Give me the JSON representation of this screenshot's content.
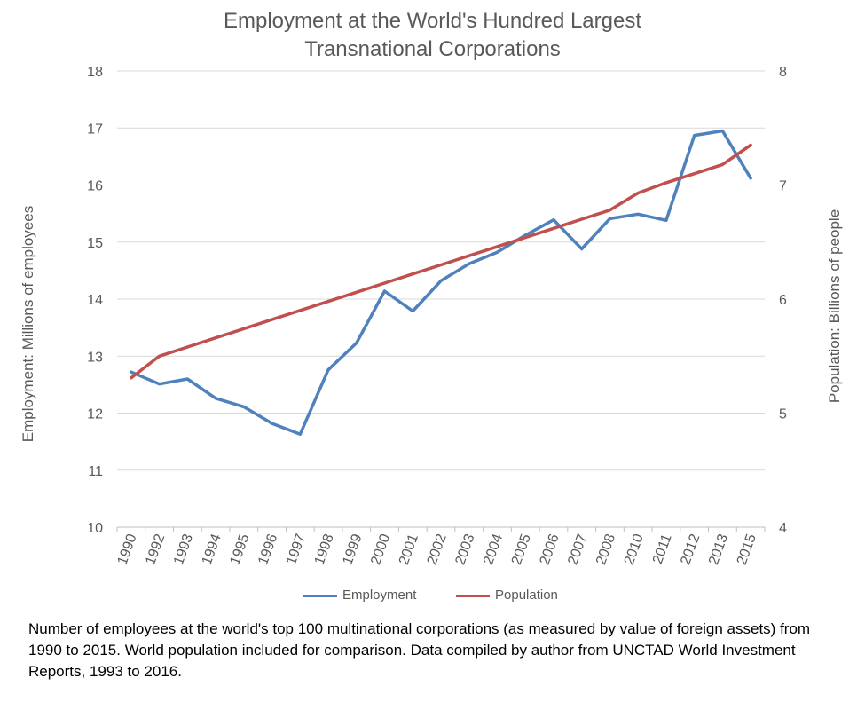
{
  "chart_data": {
    "type": "line",
    "title_lines": [
      "Employment at the World's Hundred Largest",
      "Transnational Corporations"
    ],
    "categories": [
      "1990",
      "1992",
      "1993",
      "1994",
      "1995",
      "1996",
      "1997",
      "1998",
      "1999",
      "2000",
      "2001",
      "2002",
      "2003",
      "2004",
      "2005",
      "2006",
      "2007",
      "2008",
      "2010",
      "2011",
      "2012",
      "2013",
      "2015"
    ],
    "series": [
      {
        "name": "Employment",
        "axis": "left",
        "color": "#4f81bd",
        "values": [
          12.72,
          12.51,
          12.6,
          12.26,
          12.11,
          11.82,
          11.63,
          12.76,
          13.23,
          14.14,
          13.79,
          14.32,
          14.62,
          14.82,
          15.12,
          15.39,
          14.88,
          15.41,
          15.49,
          15.38,
          16.87,
          16.95,
          16.12
        ]
      },
      {
        "name": "Population",
        "axis": "right",
        "color": "#c0504d",
        "values": [
          5.31,
          5.5,
          5.58,
          5.66,
          5.74,
          5.82,
          5.9,
          5.98,
          6.06,
          6.14,
          6.22,
          6.3,
          6.38,
          6.46,
          6.54,
          6.62,
          6.7,
          6.78,
          6.93,
          7.02,
          7.1,
          7.18,
          7.35
        ]
      }
    ],
    "y_left": {
      "label": "Employment: Millions of employees",
      "ylim": [
        10,
        18
      ],
      "ticks": [
        10,
        11,
        12,
        13,
        14,
        15,
        16,
        17,
        18
      ]
    },
    "y_right": {
      "label": "Population: Billions of people",
      "ylim": [
        4,
        8
      ],
      "ticks": [
        4,
        5,
        6,
        7,
        8
      ]
    },
    "grid": true,
    "legend_placement": "bottom"
  },
  "caption": "Number of employees at the world's top 100 multinational corporations (as measured by value of foreign assets) from 1990 to 2015. World population included for comparison. Data compiled by author from UNCTAD World Investment Reports, 1993 to 2016."
}
